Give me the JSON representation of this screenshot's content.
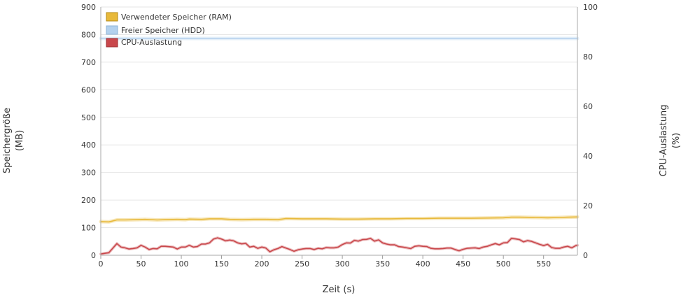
{
  "chart_data": {
    "type": "line",
    "xlabel": "Zeit (s)",
    "ylabel_left": [
      "Speichergröße",
      "(MB)"
    ],
    "ylabel_right": [
      "CPU-Auslastung",
      "(%)"
    ],
    "xlim": [
      0,
      592
    ],
    "ylim_left": [
      0,
      900
    ],
    "ylim_right": [
      0,
      100
    ],
    "x_ticks": [
      0,
      50,
      100,
      150,
      200,
      250,
      300,
      350,
      400,
      450,
      500,
      550
    ],
    "y_ticks_left": [
      0,
      100,
      200,
      300,
      400,
      500,
      600,
      700,
      800,
      900
    ],
    "y_ticks_right": [
      0,
      20,
      40,
      60,
      80,
      100
    ],
    "grid": true,
    "legend_position": "top-left",
    "series": [
      {
        "name": "Verwendeter Speicher (RAM)",
        "axis": "left",
        "color": "#e8b93a",
        "points": [
          [
            0,
            122
          ],
          [
            10,
            121
          ],
          [
            20,
            128
          ],
          [
            30,
            128
          ],
          [
            45,
            129
          ],
          [
            55,
            130
          ],
          [
            70,
            128
          ],
          [
            80,
            129
          ],
          [
            95,
            130
          ],
          [
            105,
            129
          ],
          [
            110,
            131
          ],
          [
            125,
            130
          ],
          [
            135,
            132
          ],
          [
            150,
            132
          ],
          [
            160,
            130
          ],
          [
            175,
            129
          ],
          [
            190,
            130
          ],
          [
            205,
            130
          ],
          [
            220,
            129
          ],
          [
            230,
            133
          ],
          [
            250,
            132
          ],
          [
            265,
            132
          ],
          [
            280,
            132
          ],
          [
            300,
            131
          ],
          [
            320,
            131
          ],
          [
            340,
            132
          ],
          [
            360,
            132
          ],
          [
            380,
            133
          ],
          [
            400,
            133
          ],
          [
            420,
            134
          ],
          [
            440,
            134
          ],
          [
            460,
            134
          ],
          [
            480,
            135
          ],
          [
            500,
            136
          ],
          [
            510,
            138
          ],
          [
            520,
            138
          ],
          [
            540,
            137
          ],
          [
            555,
            136
          ],
          [
            570,
            137
          ],
          [
            580,
            138
          ],
          [
            592,
            139
          ]
        ]
      },
      {
        "name": "Freier Speicher (HDD)",
        "axis": "left",
        "color": "#b3d1ee",
        "points": [
          [
            0,
            786
          ],
          [
            592,
            786
          ]
        ]
      },
      {
        "name": "CPU-Auslastung",
        "axis": "right",
        "color": "#c9474b",
        "points": [
          [
            0,
            0.5
          ],
          [
            5,
            0.8
          ],
          [
            10,
            1
          ],
          [
            20,
            4.7
          ],
          [
            25,
            3.3
          ],
          [
            30,
            3
          ],
          [
            35,
            2.5
          ],
          [
            40,
            2.7
          ],
          [
            45,
            3
          ],
          [
            50,
            4
          ],
          [
            55,
            3.3
          ],
          [
            60,
            2.3
          ],
          [
            65,
            2.7
          ],
          [
            70,
            2.6
          ],
          [
            75,
            3.6
          ],
          [
            80,
            3.6
          ],
          [
            90,
            3.3
          ],
          [
            95,
            2.5
          ],
          [
            100,
            3.3
          ],
          [
            105,
            3.3
          ],
          [
            110,
            4
          ],
          [
            115,
            3.3
          ],
          [
            120,
            3.5
          ],
          [
            125,
            4.5
          ],
          [
            130,
            4.5
          ],
          [
            135,
            5
          ],
          [
            140,
            6.5
          ],
          [
            145,
            7
          ],
          [
            150,
            6.5
          ],
          [
            155,
            5.8
          ],
          [
            160,
            6.1
          ],
          [
            165,
            5.8
          ],
          [
            170,
            5
          ],
          [
            175,
            4.6
          ],
          [
            180,
            4.8
          ],
          [
            185,
            3.3
          ],
          [
            190,
            3.6
          ],
          [
            195,
            2.8
          ],
          [
            200,
            3.3
          ],
          [
            205,
            2.9
          ],
          [
            210,
            1.4
          ],
          [
            215,
            2.2
          ],
          [
            220,
            2.7
          ],
          [
            225,
            3.5
          ],
          [
            230,
            2.9
          ],
          [
            235,
            2.3
          ],
          [
            240,
            1.6
          ],
          [
            245,
            2.2
          ],
          [
            250,
            2.5
          ],
          [
            255,
            2.7
          ],
          [
            260,
            2.7
          ],
          [
            265,
            2.3
          ],
          [
            270,
            2.8
          ],
          [
            275,
            2.6
          ],
          [
            280,
            3.1
          ],
          [
            285,
            3
          ],
          [
            290,
            3
          ],
          [
            295,
            3.3
          ],
          [
            300,
            4.3
          ],
          [
            305,
            5
          ],
          [
            310,
            4.9
          ],
          [
            315,
            6
          ],
          [
            320,
            5.7
          ],
          [
            325,
            6.3
          ],
          [
            330,
            6.4
          ],
          [
            335,
            6.8
          ],
          [
            340,
            5.7
          ],
          [
            345,
            6.2
          ],
          [
            350,
            5
          ],
          [
            355,
            4.5
          ],
          [
            360,
            4.2
          ],
          [
            365,
            4.2
          ],
          [
            370,
            3.5
          ],
          [
            375,
            3.3
          ],
          [
            380,
            3
          ],
          [
            385,
            2.7
          ],
          [
            390,
            3.6
          ],
          [
            395,
            3.8
          ],
          [
            400,
            3.6
          ],
          [
            405,
            3.5
          ],
          [
            410,
            2.8
          ],
          [
            415,
            2.6
          ],
          [
            420,
            2.6
          ],
          [
            425,
            2.7
          ],
          [
            430,
            2.9
          ],
          [
            435,
            2.9
          ],
          [
            440,
            2.3
          ],
          [
            445,
            1.8
          ],
          [
            450,
            2.4
          ],
          [
            455,
            2.8
          ],
          [
            460,
            2.9
          ],
          [
            465,
            3
          ],
          [
            470,
            2.7
          ],
          [
            475,
            3.3
          ],
          [
            480,
            3.6
          ],
          [
            485,
            4.2
          ],
          [
            490,
            4.7
          ],
          [
            495,
            4.2
          ],
          [
            500,
            5
          ],
          [
            505,
            5.1
          ],
          [
            510,
            6.8
          ],
          [
            515,
            6.6
          ],
          [
            520,
            6.3
          ],
          [
            525,
            5.4
          ],
          [
            530,
            5.9
          ],
          [
            535,
            5.6
          ],
          [
            540,
            5
          ],
          [
            545,
            4.4
          ],
          [
            550,
            3.9
          ],
          [
            555,
            4.4
          ],
          [
            560,
            3.1
          ],
          [
            565,
            2.8
          ],
          [
            570,
            2.8
          ],
          [
            575,
            3.3
          ],
          [
            580,
            3.6
          ],
          [
            585,
            3
          ],
          [
            590,
            3.9
          ],
          [
            592,
            4
          ]
        ]
      }
    ]
  }
}
